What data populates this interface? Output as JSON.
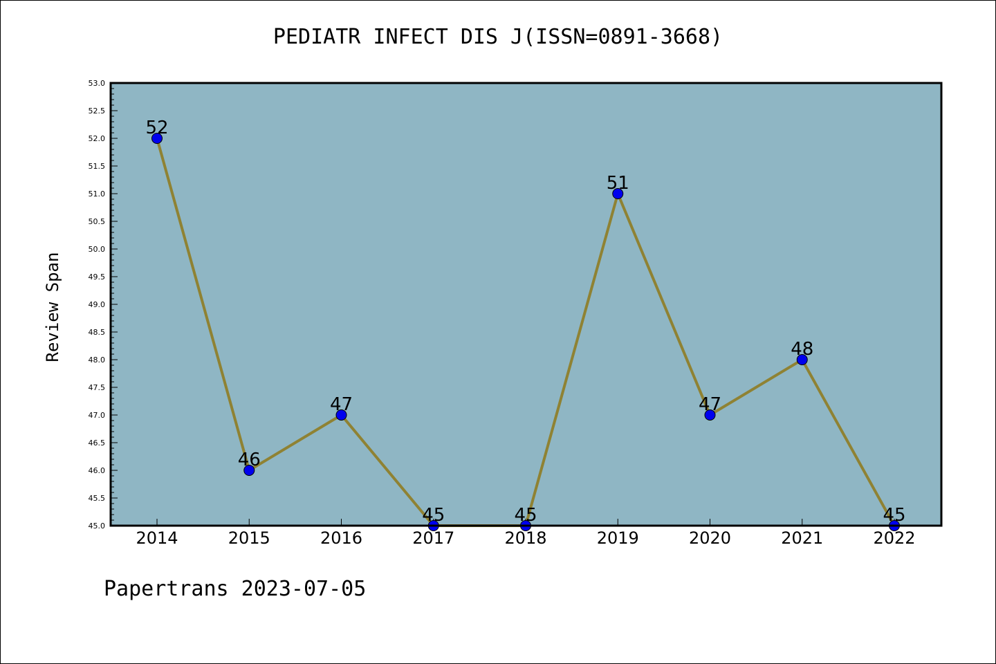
{
  "chart_data": {
    "type": "line",
    "title": "PEDIATR INFECT DIS J(ISSN=0891-3668)",
    "xlabel": "",
    "ylabel": "Review Span",
    "x": [
      "2014",
      "2015",
      "2016",
      "2017",
      "2018",
      "2019",
      "2020",
      "2021",
      "2022"
    ],
    "series": [
      {
        "values": [
          52,
          46,
          47,
          45,
          45,
          51,
          47,
          48,
          45
        ]
      }
    ],
    "data_labels": [
      "52",
      "46",
      "47",
      "45",
      "45",
      "51",
      "47",
      "48",
      "45"
    ],
    "ylim": [
      45.0,
      53.0
    ],
    "yticks": [
      "45.0",
      "45.5",
      "46.0",
      "46.5",
      "47.0",
      "47.5",
      "48.0",
      "48.5",
      "49.0",
      "49.5",
      "50.0",
      "50.5",
      "51.0",
      "51.5",
      "52.0",
      "52.5",
      "53.0"
    ],
    "grid": false,
    "colors": {
      "plot_background": "#8fb6c4",
      "line": "#8f8233",
      "marker": "#0000ee"
    }
  },
  "footer": "Papertrans 2023-07-05"
}
